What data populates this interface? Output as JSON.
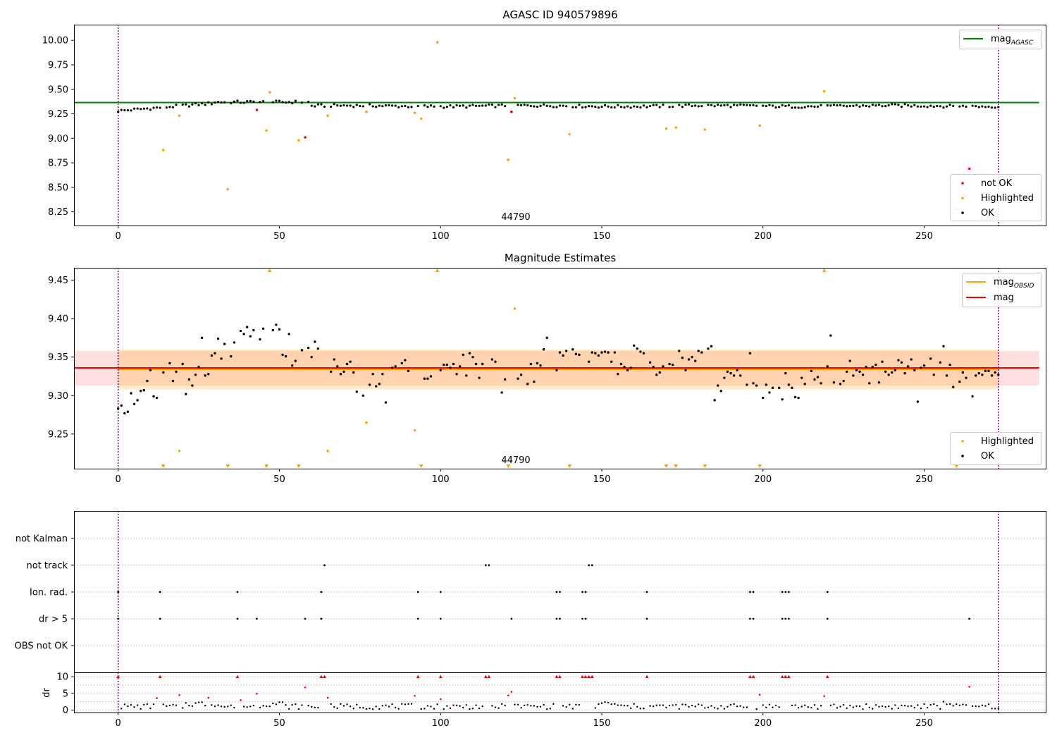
{
  "chart_data": [
    {
      "type": "scatter",
      "title": "AGASC ID 940579896",
      "annotation": "44790",
      "xlim": [
        -13.7,
        287.7
      ],
      "ylim": [
        8.11,
        10.16
      ],
      "xticks": [
        0,
        50,
        100,
        150,
        200,
        250,
        300
      ],
      "yticks": [
        8.25,
        8.5,
        8.75,
        9.0,
        9.25,
        9.5,
        9.75,
        10.0
      ],
      "ytick_labels": [
        "8.25",
        "8.50",
        "8.75",
        "9.00",
        "9.25",
        "9.50",
        "9.75",
        "10.00"
      ],
      "vlines": [
        0,
        273
      ],
      "vline_color": "#800080",
      "hline": {
        "y": 9.365,
        "x_range": [
          -13.7,
          287.7
        ],
        "color": "#008000"
      },
      "legend_top": {
        "position": "top-right",
        "entries": [
          {
            "label": "mag",
            "sub": "AGASC",
            "color": "#008000"
          }
        ]
      },
      "legend_bottom": {
        "position": "bottom-right",
        "entries": [
          {
            "label": "not OK",
            "color": "#ff0000"
          },
          {
            "label": "Highlighted",
            "color": "#ffa500"
          },
          {
            "label": "OK",
            "color": "#000000"
          }
        ]
      },
      "baseline": {
        "start": 9.28,
        "mid": 9.36,
        "end": 9.33
      },
      "highlighted": [
        [
          14,
          8.88
        ],
        [
          19,
          9.23
        ],
        [
          34,
          8.48
        ],
        [
          46,
          9.08
        ],
        [
          47,
          9.47
        ],
        [
          56,
          8.98
        ],
        [
          65,
          9.23
        ],
        [
          77,
          9.27
        ],
        [
          92,
          9.26
        ],
        [
          94,
          9.2
        ],
        [
          99,
          9.98
        ],
        [
          121,
          8.78
        ],
        [
          123,
          9.41
        ],
        [
          140,
          9.04
        ],
        [
          170,
          9.1
        ],
        [
          173,
          9.11
        ],
        [
          182,
          9.09
        ],
        [
          199,
          9.13
        ],
        [
          219,
          9.48
        ],
        [
          260,
          8.28
        ]
      ],
      "not_ok": [
        [
          43,
          9.29
        ],
        [
          58,
          9.01
        ],
        [
          122,
          9.27
        ],
        [
          264,
          8.69
        ]
      ]
    },
    {
      "type": "scatter",
      "title": "Magnitude Estimates",
      "annotation": "44790",
      "xlim": [
        -13.7,
        287.7
      ],
      "ylim": [
        9.205,
        9.466
      ],
      "xticks": [
        0,
        50,
        100,
        150,
        200,
        250,
        300
      ],
      "yticks": [
        9.25,
        9.3,
        9.35,
        9.4,
        9.45
      ],
      "ytick_labels": [
        "9.25",
        "9.30",
        "9.35",
        "9.40",
        "9.45"
      ],
      "vlines": [
        0,
        273
      ],
      "vline_color": "#800080",
      "mag_line": {
        "y": 9.336,
        "color": "#ff0000"
      },
      "mag_band": [
        9.313,
        9.358
      ],
      "mag_obsid_line": {
        "y": 9.334,
        "color": "#ffa500"
      },
      "mag_obsid_band": [
        9.308,
        9.36
      ],
      "legend_top": {
        "position": "top-right",
        "entries": [
          {
            "label": "mag",
            "sub": "OBSID",
            "color": "#ffa500"
          },
          {
            "label": "mag",
            "sub": "",
            "color": "#ff0000"
          }
        ]
      },
      "legend_bottom": {
        "position": "bottom-right",
        "entries": [
          {
            "label": "Highlighted",
            "color": "#ffa500"
          },
          {
            "label": "OK",
            "color": "#000000"
          }
        ]
      },
      "ok_points": [
        [
          0,
          9.283
        ],
        [
          1,
          9.287
        ],
        [
          2,
          9.277
        ],
        [
          3,
          9.279
        ],
        [
          4,
          9.303
        ],
        [
          5,
          9.289
        ],
        [
          6,
          9.294
        ],
        [
          7,
          9.306
        ],
        [
          8,
          9.307
        ],
        [
          9,
          9.319
        ],
        [
          10,
          9.333
        ],
        [
          11,
          9.299
        ],
        [
          12,
          9.297
        ],
        [
          14,
          9.33
        ],
        [
          16,
          9.342
        ],
        [
          17,
          9.319
        ],
        [
          18,
          9.331
        ],
        [
          20,
          9.341
        ],
        [
          21,
          9.302
        ],
        [
          22,
          9.321
        ],
        [
          23,
          9.313
        ],
        [
          24,
          9.327
        ],
        [
          25,
          9.337
        ],
        [
          26,
          9.375
        ],
        [
          27,
          9.326
        ],
        [
          28,
          9.328
        ],
        [
          29,
          9.352
        ],
        [
          30,
          9.355
        ],
        [
          31,
          9.374
        ],
        [
          32,
          9.348
        ],
        [
          33,
          9.367
        ],
        [
          35,
          9.351
        ],
        [
          36,
          9.369
        ],
        [
          38,
          9.384
        ],
        [
          39,
          9.38
        ],
        [
          40,
          9.389
        ],
        [
          41,
          9.377
        ],
        [
          42,
          9.385
        ],
        [
          44,
          9.373
        ],
        [
          45,
          9.387
        ],
        [
          48,
          9.385
        ],
        [
          49,
          9.392
        ],
        [
          50,
          9.386
        ],
        [
          51,
          9.353
        ],
        [
          52,
          9.351
        ],
        [
          53,
          9.38
        ],
        [
          54,
          9.339
        ],
        [
          55,
          9.345
        ],
        [
          57,
          9.359
        ],
        [
          59,
          9.362
        ],
        [
          60,
          9.35
        ],
        [
          61,
          9.37
        ],
        [
          62,
          9.361
        ],
        [
          66,
          9.331
        ],
        [
          67,
          9.347
        ],
        [
          68,
          9.338
        ],
        [
          69,
          9.328
        ],
        [
          70,
          9.331
        ],
        [
          71,
          9.341
        ],
        [
          72,
          9.344
        ],
        [
          73,
          9.33
        ],
        [
          74,
          9.305
        ],
        [
          76,
          9.3
        ],
        [
          78,
          9.314
        ],
        [
          79,
          9.328
        ],
        [
          80,
          9.312
        ],
        [
          81,
          9.315
        ],
        [
          82,
          9.328
        ],
        [
          83,
          9.291
        ],
        [
          85,
          9.336
        ],
        [
          86,
          9.338
        ],
        [
          88,
          9.342
        ],
        [
          89,
          9.346
        ],
        [
          90,
          9.332
        ],
        [
          95,
          9.322
        ],
        [
          96,
          9.322
        ],
        [
          97,
          9.325
        ],
        [
          100,
          9.333
        ],
        [
          101,
          9.34
        ],
        [
          102,
          9.34
        ],
        [
          103,
          9.336
        ],
        [
          104,
          9.341
        ],
        [
          105,
          9.328
        ],
        [
          106,
          9.338
        ],
        [
          107,
          9.353
        ],
        [
          108,
          9.326
        ],
        [
          109,
          9.355
        ],
        [
          110,
          9.35
        ],
        [
          111,
          9.341
        ],
        [
          112,
          9.323
        ],
        [
          113,
          9.341
        ],
        [
          116,
          9.347
        ],
        [
          117,
          9.344
        ],
        [
          119,
          9.304
        ],
        [
          120,
          9.321
        ],
        [
          124,
          9.322
        ],
        [
          125,
          9.327
        ],
        [
          127,
          9.315
        ],
        [
          128,
          9.341
        ],
        [
          129,
          9.318
        ],
        [
          130,
          9.342
        ],
        [
          131,
          9.339
        ],
        [
          132,
          9.36
        ],
        [
          133,
          9.375
        ],
        [
          136,
          9.333
        ],
        [
          137,
          9.356
        ],
        [
          138,
          9.352
        ],
        [
          139,
          9.358
        ],
        [
          141,
          9.36
        ],
        [
          142,
          9.354
        ],
        [
          143,
          9.353
        ],
        [
          146,
          9.344
        ],
        [
          147,
          9.356
        ],
        [
          148,
          9.355
        ],
        [
          149,
          9.352
        ],
        [
          150,
          9.356
        ],
        [
          151,
          9.357
        ],
        [
          152,
          9.356
        ],
        [
          153,
          9.344
        ],
        [
          154,
          9.356
        ],
        [
          155,
          9.328
        ],
        [
          156,
          9.341
        ],
        [
          157,
          9.337
        ],
        [
          158,
          9.333
        ],
        [
          159,
          9.336
        ],
        [
          160,
          9.365
        ],
        [
          161,
          9.361
        ],
        [
          162,
          9.357
        ],
        [
          163,
          9.355
        ],
        [
          165,
          9.343
        ],
        [
          166,
          9.337
        ],
        [
          167,
          9.327
        ],
        [
          168,
          9.33
        ],
        [
          169,
          9.338
        ],
        [
          171,
          9.341
        ],
        [
          172,
          9.34
        ],
        [
          174,
          9.358
        ],
        [
          175,
          9.349
        ],
        [
          176,
          9.333
        ],
        [
          177,
          9.347
        ],
        [
          178,
          9.35
        ],
        [
          179,
          9.345
        ],
        [
          180,
          9.358
        ],
        [
          181,
          9.356
        ],
        [
          183,
          9.361
        ],
        [
          184,
          9.364
        ],
        [
          185,
          9.294
        ],
        [
          186,
          9.313
        ],
        [
          187,
          9.306
        ],
        [
          188,
          9.323
        ],
        [
          189,
          9.331
        ],
        [
          190,
          9.329
        ],
        [
          191,
          9.326
        ],
        [
          192,
          9.333
        ],
        [
          193,
          9.326
        ],
        [
          195,
          9.314
        ],
        [
          196,
          9.355
        ],
        [
          197,
          9.316
        ],
        [
          198,
          9.313
        ],
        [
          200,
          9.297
        ],
        [
          201,
          9.314
        ],
        [
          202,
          9.304
        ],
        [
          203,
          9.31
        ],
        [
          205,
          9.31
        ],
        [
          206,
          9.295
        ],
        [
          207,
          9.329
        ],
        [
          208,
          9.314
        ],
        [
          209,
          9.31
        ],
        [
          210,
          9.298
        ],
        [
          211,
          9.297
        ],
        [
          212,
          9.323
        ],
        [
          213,
          9.315
        ],
        [
          215,
          9.332
        ],
        [
          216,
          9.321
        ],
        [
          217,
          9.324
        ],
        [
          218,
          9.316
        ],
        [
          220,
          9.338
        ],
        [
          221,
          9.378
        ],
        [
          222,
          9.317
        ],
        [
          224,
          9.315
        ],
        [
          225,
          9.319
        ],
        [
          226,
          9.331
        ],
        [
          227,
          9.345
        ],
        [
          228,
          9.326
        ],
        [
          229,
          9.333
        ],
        [
          230,
          9.331
        ],
        [
          231,
          9.327
        ],
        [
          232,
          9.337
        ],
        [
          233,
          9.316
        ],
        [
          234,
          9.337
        ],
        [
          235,
          9.34
        ],
        [
          236,
          9.317
        ],
        [
          237,
          9.344
        ],
        [
          238,
          9.331
        ],
        [
          239,
          9.327
        ],
        [
          240,
          9.33
        ],
        [
          241,
          9.333
        ],
        [
          242,
          9.346
        ],
        [
          243,
          9.343
        ],
        [
          244,
          9.329
        ],
        [
          245,
          9.338
        ],
        [
          246,
          9.347
        ],
        [
          247,
          9.333
        ],
        [
          248,
          9.292
        ],
        [
          249,
          9.336
        ],
        [
          250,
          9.339
        ],
        [
          252,
          9.348
        ],
        [
          253,
          9.327
        ],
        [
          255,
          9.343
        ],
        [
          256,
          9.364
        ],
        [
          257,
          9.326
        ],
        [
          258,
          9.34
        ],
        [
          259,
          9.311
        ],
        [
          261,
          9.318
        ],
        [
          262,
          9.33
        ],
        [
          263,
          9.323
        ],
        [
          265,
          9.299
        ],
        [
          266,
          9.326
        ],
        [
          267,
          9.329
        ],
        [
          268,
          9.327
        ],
        [
          269,
          9.332
        ],
        [
          270,
          9.332
        ],
        [
          271,
          9.326
        ],
        [
          272,
          9.33
        ],
        [
          273,
          9.327
        ]
      ],
      "highlighted_points": [
        [
          19,
          9.228
        ],
        [
          65,
          9.228
        ],
        [
          77,
          9.265
        ],
        [
          92,
          9.255
        ],
        [
          123,
          9.413
        ]
      ],
      "up_markers": [
        47,
        99,
        219
      ],
      "down_markers": [
        14,
        34,
        46,
        56,
        94,
        121,
        140,
        170,
        173,
        182,
        199,
        260
      ]
    },
    {
      "type": "scatter",
      "title": "",
      "xlim": [
        -13.7,
        287.7
      ],
      "xticks": [
        0,
        50,
        100,
        150,
        200,
        250,
        300
      ],
      "vlines": [
        0,
        273
      ],
      "vline_color": "#800080",
      "categories": [
        "not Kalman",
        "not track",
        "Ion. rad.",
        "dr > 5",
        "OBS not OK"
      ],
      "flag_points": {
        "not Kalman": [],
        "not track": [
          64,
          114,
          115,
          146,
          147
        ],
        "Ion. rad.": [
          0,
          13,
          37,
          63,
          93,
          100,
          136,
          137,
          144,
          145,
          164,
          196,
          197,
          206,
          207,
          208,
          220
        ],
        "dr > 5": [
          0,
          13,
          37,
          43,
          58,
          63,
          93,
          100,
          122,
          136,
          137,
          144,
          145,
          164,
          196,
          197,
          206,
          207,
          208,
          220,
          264
        ],
        "OBS not OK": []
      }
    },
    {
      "type": "scatter",
      "title": "",
      "ylabel": "dr",
      "xlim": [
        -13.7,
        287.7
      ],
      "ylim": [
        -0.7,
        11.3
      ],
      "xticks": [
        0,
        50,
        100,
        150,
        200,
        250,
        300
      ],
      "yticks": [
        0,
        5,
        10
      ],
      "ytick_labels": [
        "0",
        "5",
        "10"
      ],
      "vlines": [
        0,
        273
      ],
      "vline_color": "#800080",
      "red_triangles": [
        0,
        13,
        37,
        63,
        64,
        93,
        100,
        114,
        115,
        136,
        137,
        144,
        145,
        146,
        147,
        164,
        196,
        197,
        206,
        207,
        208,
        220
      ],
      "red_points": [
        [
          12,
          3.6
        ],
        [
          19,
          4.5
        ],
        [
          28,
          3.7
        ],
        [
          38,
          3.0
        ],
        [
          43,
          4.9
        ],
        [
          58,
          6.8
        ],
        [
          65,
          3.7
        ],
        [
          92,
          4.3
        ],
        [
          100,
          3.3
        ],
        [
          121,
          4.4
        ],
        [
          122,
          5.5
        ],
        [
          199,
          4.6
        ],
        [
          219,
          4.2
        ],
        [
          264,
          7.0
        ]
      ]
    }
  ]
}
